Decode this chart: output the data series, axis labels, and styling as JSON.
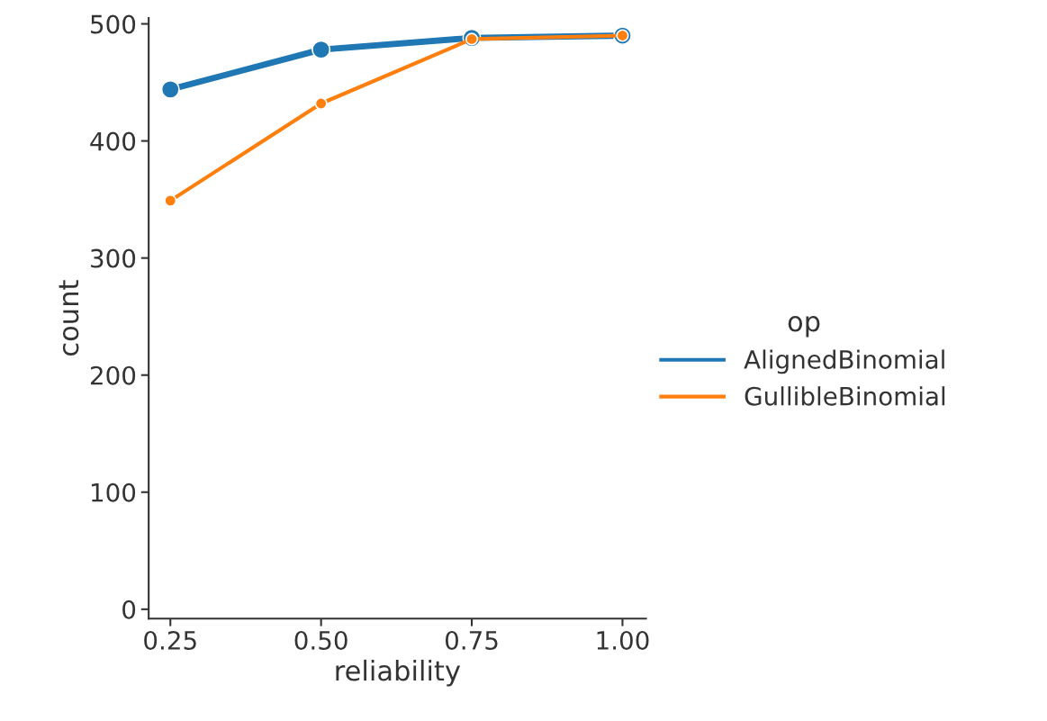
{
  "chart_data": {
    "type": "line",
    "xlabel": "reliability",
    "ylabel": "count",
    "legend_title": "op",
    "x": [
      0.25,
      0.5,
      0.75,
      1.0
    ],
    "series": [
      {
        "name": "AlignedBinomial",
        "color": "#1f77b4",
        "values": [
          444,
          478,
          488,
          490
        ]
      },
      {
        "name": "GullibleBinomial",
        "color": "#ff7f0e",
        "values": [
          349,
          432,
          487,
          490
        ]
      }
    ],
    "xlim": [
      0.214,
      1.039
    ],
    "xticks": [
      {
        "value": 0.25,
        "label": "0.25"
      },
      {
        "value": 0.5,
        "label": "0.50"
      },
      {
        "value": 0.75,
        "label": "0.75"
      },
      {
        "value": 1.0,
        "label": "1.00"
      }
    ],
    "ylim": [
      -8,
      505
    ],
    "yticks": [
      0,
      100,
      200,
      300,
      400,
      500
    ],
    "grid": false,
    "legend": "right",
    "marker": "circle",
    "line_style": "solid"
  }
}
